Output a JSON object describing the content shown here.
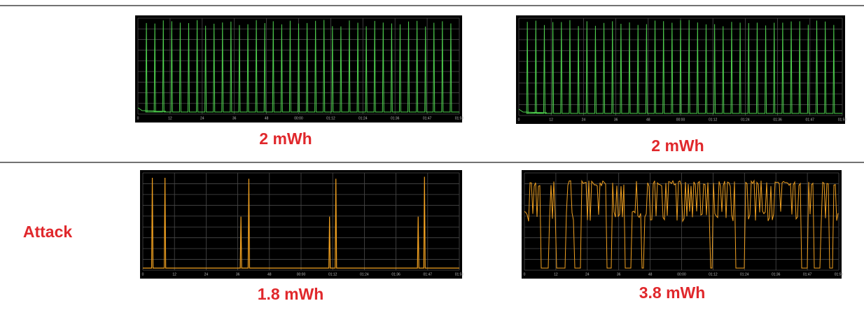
{
  "panels": [
    {
      "label": "2 mWh"
    },
    {
      "label": "2 mWh"
    },
    {
      "label": "1.8 mWh"
    },
    {
      "label": "3.8 mWh"
    }
  ],
  "row_label": "Attack",
  "tick_labels": [
    "0",
    "12",
    "24",
    "36",
    "48",
    "00:00",
    "01:12",
    "01:24",
    "01:36",
    "01:47",
    "01:59"
  ]
}
